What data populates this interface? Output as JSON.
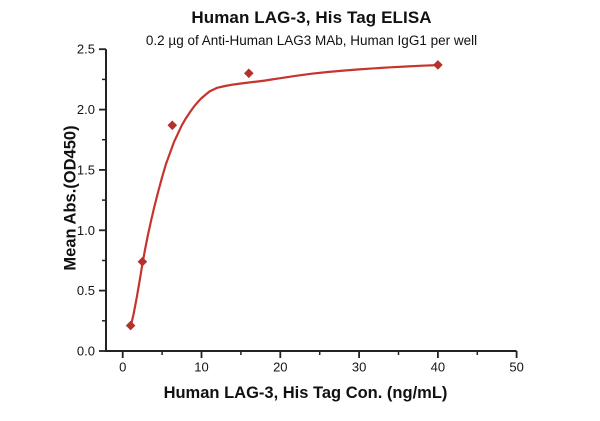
{
  "chart_data": {
    "type": "scatter",
    "title": "Human LAG-3, His Tag ELISA",
    "subtitle": "0.2 µg of Anti-Human LAG3 MAb, Human IgG1 per well",
    "xlabel": "Human LAG-3, His Tag Con. (ng/mL)",
    "ylabel": "Mean Abs.(OD450)",
    "xlim": [
      -2.1,
      50
    ],
    "ylim": [
      0,
      2.5
    ],
    "grid": "off",
    "legend": "none",
    "x_axis": {
      "major_ticks": [
        0,
        10,
        20,
        30,
        40,
        50
      ],
      "tick_labels": [
        "0",
        "10",
        "20",
        "30",
        "40",
        "50"
      ],
      "minor_ticks": [
        5,
        15,
        25,
        35,
        45
      ]
    },
    "y_axis": {
      "major_ticks": [
        0.0,
        0.5,
        1.0,
        1.5,
        2.0,
        2.5
      ],
      "tick_labels": [
        "0.0",
        "0.5",
        "1.0",
        "1.5",
        "2.0",
        "2.5"
      ],
      "minor_ticks": [
        0.25,
        0.75,
        1.25,
        1.75,
        2.25
      ]
    },
    "points": {
      "x": [
        1,
        2.5,
        6.3,
        16,
        40
      ],
      "y": [
        0.21,
        0.74,
        1.87,
        2.3,
        2.37
      ]
    },
    "fit_curve": [
      [
        1,
        0.2
      ],
      [
        1.4,
        0.31
      ],
      [
        1.8,
        0.45
      ],
      [
        2.2,
        0.6
      ],
      [
        2.5,
        0.72
      ],
      [
        2.8,
        0.83
      ],
      [
        3.2,
        0.96
      ],
      [
        3.6,
        1.08
      ],
      [
        4,
        1.19
      ],
      [
        4.5,
        1.32
      ],
      [
        5,
        1.44
      ],
      [
        5.5,
        1.55
      ],
      [
        6,
        1.64
      ],
      [
        6.5,
        1.73
      ],
      [
        7,
        1.8
      ],
      [
        7.5,
        1.87
      ],
      [
        8,
        1.925
      ],
      [
        8.5,
        1.975
      ],
      [
        9,
        2.02
      ],
      [
        9.5,
        2.06
      ],
      [
        10,
        2.095
      ],
      [
        11,
        2.15
      ],
      [
        12,
        2.18
      ],
      [
        13,
        2.195
      ],
      [
        14,
        2.207
      ],
      [
        15,
        2.216
      ],
      [
        16,
        2.224
      ],
      [
        17,
        2.232
      ],
      [
        18,
        2.24
      ],
      [
        19,
        2.25
      ],
      [
        20,
        2.26
      ],
      [
        22,
        2.28
      ],
      [
        24,
        2.297
      ],
      [
        26,
        2.311
      ],
      [
        28,
        2.323
      ],
      [
        30,
        2.333
      ],
      [
        32,
        2.342
      ],
      [
        34,
        2.35
      ],
      [
        36,
        2.357
      ],
      [
        38,
        2.363
      ],
      [
        40,
        2.368
      ]
    ],
    "colors": {
      "curve": "#c5352e",
      "marker": "#b5322b",
      "axis": "#222222",
      "text": "#111111"
    }
  }
}
